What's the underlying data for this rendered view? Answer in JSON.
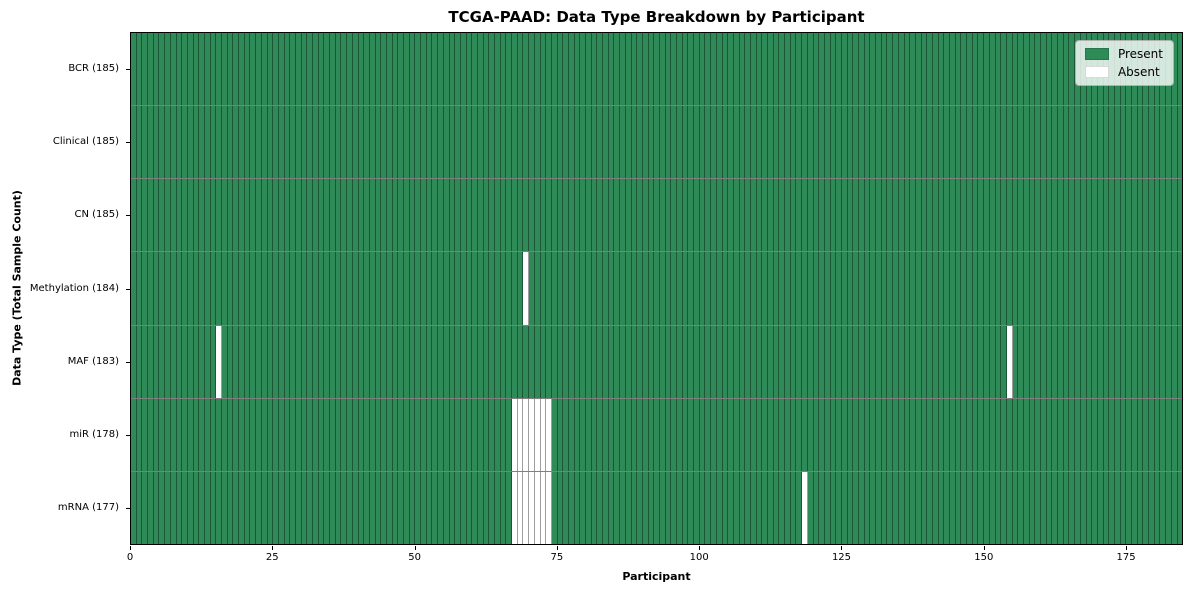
{
  "chart_data": {
    "type": "heatmap",
    "title": "TCGA-PAAD: Data Type Breakdown by Participant",
    "xlabel": "Participant",
    "ylabel": "Data Type (Total Sample Count)",
    "n_participants": 185,
    "xlim": [
      0,
      185
    ],
    "x_ticks": [
      0,
      25,
      50,
      75,
      100,
      125,
      150,
      175
    ],
    "grid": "per-participant vertical cell edges, horizontal row separators",
    "legend_position": "upper right",
    "colors": {
      "present": "#2e8b57",
      "absent": "#ffffff"
    },
    "legend": [
      {
        "label": "Present",
        "color": "#2e8b57"
      },
      {
        "label": "Absent",
        "color": "#ffffff"
      }
    ],
    "rows": [
      {
        "name": "BCR",
        "label": "BCR (185)",
        "total": 185,
        "absent_participants": []
      },
      {
        "name": "Clinical",
        "label": "Clinical (185)",
        "total": 185,
        "absent_participants": []
      },
      {
        "name": "CN",
        "label": "CN (185)",
        "total": 185,
        "absent_participants": []
      },
      {
        "name": "Methylation",
        "label": "Methylation (184)",
        "total": 184,
        "absent_participants": [
          69
        ]
      },
      {
        "name": "MAF",
        "label": "MAF (183)",
        "total": 183,
        "absent_participants": [
          15,
          154
        ]
      },
      {
        "name": "miR",
        "label": "miR (178)",
        "total": 178,
        "absent_participants": [
          67,
          68,
          69,
          70,
          71,
          72,
          73
        ]
      },
      {
        "name": "mRNA",
        "label": "mRNA (177)",
        "total": 177,
        "absent_participants": [
          67,
          68,
          69,
          70,
          71,
          72,
          73,
          118
        ]
      }
    ]
  }
}
